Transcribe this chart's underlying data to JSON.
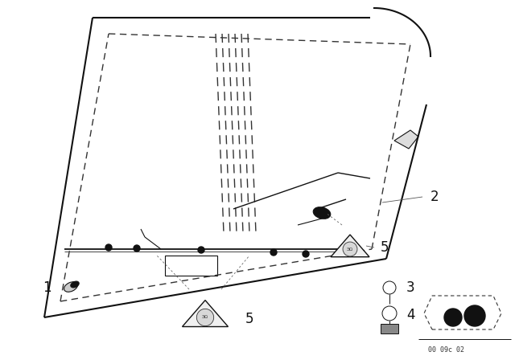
{
  "bg_color": "#ffffff",
  "fig_width": 6.4,
  "fig_height": 4.48,
  "dpi": 100,
  "lc": "#111111",
  "catalog_number": "00 09c 02"
}
